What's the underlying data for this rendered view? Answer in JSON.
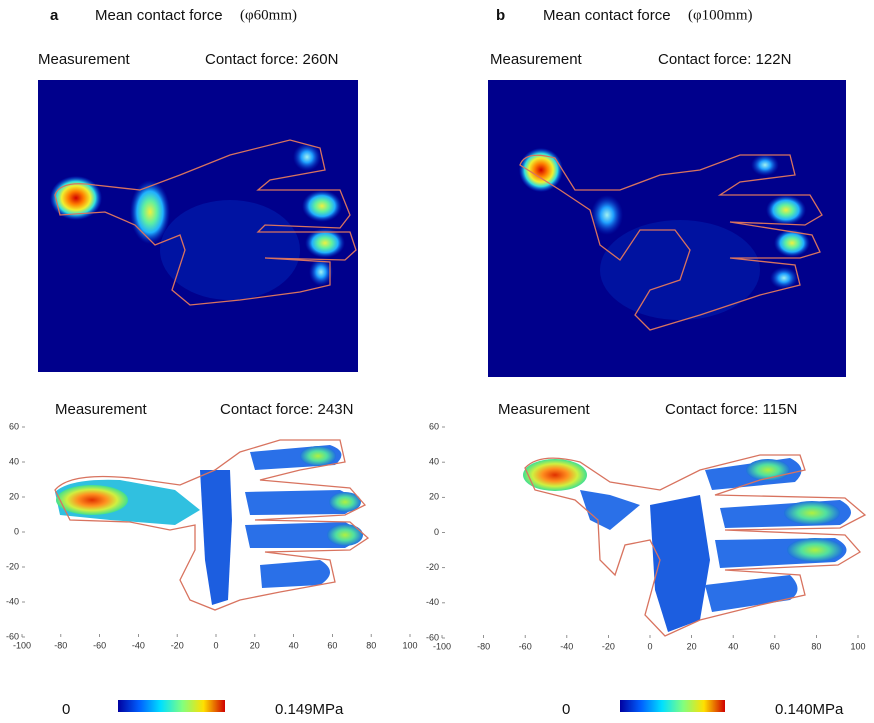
{
  "panels": [
    {
      "label": "a",
      "title": "Mean contact force",
      "title_param": "(φ60mm)",
      "measurement": {
        "label": "Measurement",
        "force": "Contact force: 260N"
      },
      "simulation": {
        "label": "Measurement",
        "force": "Contact force: 243N",
        "xlim": [
          -100,
          100
        ],
        "ylim": [
          -60,
          60
        ],
        "xticks": [
          -100,
          -80,
          -60,
          -40,
          -20,
          0,
          20,
          40,
          60,
          80,
          100
        ],
        "yticks": [
          -60,
          -40,
          -20,
          0,
          20,
          40,
          60
        ]
      },
      "colorbar": {
        "min": "0",
        "max": "0.149MPa"
      }
    },
    {
      "label": "b",
      "title": "Mean contact force",
      "title_param": "(φ100mm)",
      "measurement": {
        "label": "Measurement",
        "force": "Contact force: 122N"
      },
      "simulation": {
        "label": "Measurement",
        "force": "Contact force: 115N",
        "xlim": [
          -100,
          100
        ],
        "ylim": [
          -60,
          60
        ],
        "xticks": [
          -100,
          -80,
          -60,
          -40,
          -20,
          0,
          20,
          40,
          60,
          80,
          100
        ],
        "yticks": [
          -60,
          -40,
          -20,
          0,
          20,
          40,
          60
        ]
      },
      "colorbar": {
        "min": "0",
        "max": "0.140MPa"
      }
    }
  ]
}
